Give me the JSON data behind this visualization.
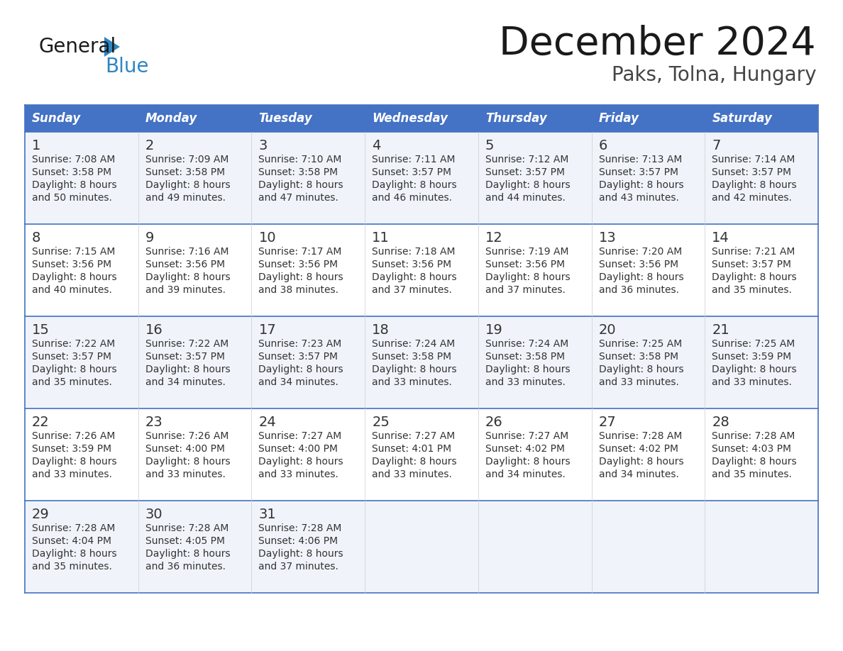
{
  "title": "December 2024",
  "subtitle": "Paks, Tolna, Hungary",
  "days_of_week": [
    "Sunday",
    "Monday",
    "Tuesday",
    "Wednesday",
    "Thursday",
    "Friday",
    "Saturday"
  ],
  "header_bg": "#4472C4",
  "header_text": "#FFFFFF",
  "cell_bg_light": "#F0F4FA",
  "cell_bg_white": "#FFFFFF",
  "cell_text": "#333333",
  "border_color": "#4472C4",
  "title_color": "#1a1a1a",
  "subtitle_color": "#444444",
  "logo_black": "#1a1a1a",
  "logo_blue": "#2E86C1",
  "logo_triangle": "#2E86C1",
  "calendar_data": [
    [
      {
        "day": 1,
        "sunrise": "7:08 AM",
        "sunset": "3:58 PM",
        "daylight_min": "50"
      },
      {
        "day": 2,
        "sunrise": "7:09 AM",
        "sunset": "3:58 PM",
        "daylight_min": "49"
      },
      {
        "day": 3,
        "sunrise": "7:10 AM",
        "sunset": "3:58 PM",
        "daylight_min": "47"
      },
      {
        "day": 4,
        "sunrise": "7:11 AM",
        "sunset": "3:57 PM",
        "daylight_min": "46"
      },
      {
        "day": 5,
        "sunrise": "7:12 AM",
        "sunset": "3:57 PM",
        "daylight_min": "44"
      },
      {
        "day": 6,
        "sunrise": "7:13 AM",
        "sunset": "3:57 PM",
        "daylight_min": "43"
      },
      {
        "day": 7,
        "sunrise": "7:14 AM",
        "sunset": "3:57 PM",
        "daylight_min": "42"
      }
    ],
    [
      {
        "day": 8,
        "sunrise": "7:15 AM",
        "sunset": "3:56 PM",
        "daylight_min": "40"
      },
      {
        "day": 9,
        "sunrise": "7:16 AM",
        "sunset": "3:56 PM",
        "daylight_min": "39"
      },
      {
        "day": 10,
        "sunrise": "7:17 AM",
        "sunset": "3:56 PM",
        "daylight_min": "38"
      },
      {
        "day": 11,
        "sunrise": "7:18 AM",
        "sunset": "3:56 PM",
        "daylight_min": "37"
      },
      {
        "day": 12,
        "sunrise": "7:19 AM",
        "sunset": "3:56 PM",
        "daylight_min": "37"
      },
      {
        "day": 13,
        "sunrise": "7:20 AM",
        "sunset": "3:56 PM",
        "daylight_min": "36"
      },
      {
        "day": 14,
        "sunrise": "7:21 AM",
        "sunset": "3:57 PM",
        "daylight_min": "35"
      }
    ],
    [
      {
        "day": 15,
        "sunrise": "7:22 AM",
        "sunset": "3:57 PM",
        "daylight_min": "35"
      },
      {
        "day": 16,
        "sunrise": "7:22 AM",
        "sunset": "3:57 PM",
        "daylight_min": "34"
      },
      {
        "day": 17,
        "sunrise": "7:23 AM",
        "sunset": "3:57 PM",
        "daylight_min": "34"
      },
      {
        "day": 18,
        "sunrise": "7:24 AM",
        "sunset": "3:58 PM",
        "daylight_min": "33"
      },
      {
        "day": 19,
        "sunrise": "7:24 AM",
        "sunset": "3:58 PM",
        "daylight_min": "33"
      },
      {
        "day": 20,
        "sunrise": "7:25 AM",
        "sunset": "3:58 PM",
        "daylight_min": "33"
      },
      {
        "day": 21,
        "sunrise": "7:25 AM",
        "sunset": "3:59 PM",
        "daylight_min": "33"
      }
    ],
    [
      {
        "day": 22,
        "sunrise": "7:26 AM",
        "sunset": "3:59 PM",
        "daylight_min": "33"
      },
      {
        "day": 23,
        "sunrise": "7:26 AM",
        "sunset": "4:00 PM",
        "daylight_min": "33"
      },
      {
        "day": 24,
        "sunrise": "7:27 AM",
        "sunset": "4:00 PM",
        "daylight_min": "33"
      },
      {
        "day": 25,
        "sunrise": "7:27 AM",
        "sunset": "4:01 PM",
        "daylight_min": "33"
      },
      {
        "day": 26,
        "sunrise": "7:27 AM",
        "sunset": "4:02 PM",
        "daylight_min": "34"
      },
      {
        "day": 27,
        "sunrise": "7:28 AM",
        "sunset": "4:02 PM",
        "daylight_min": "34"
      },
      {
        "day": 28,
        "sunrise": "7:28 AM",
        "sunset": "4:03 PM",
        "daylight_min": "35"
      }
    ],
    [
      {
        "day": 29,
        "sunrise": "7:28 AM",
        "sunset": "4:04 PM",
        "daylight_min": "35"
      },
      {
        "day": 30,
        "sunrise": "7:28 AM",
        "sunset": "4:05 PM",
        "daylight_min": "36"
      },
      {
        "day": 31,
        "sunrise": "7:28 AM",
        "sunset": "4:06 PM",
        "daylight_min": "37"
      },
      null,
      null,
      null,
      null
    ]
  ]
}
